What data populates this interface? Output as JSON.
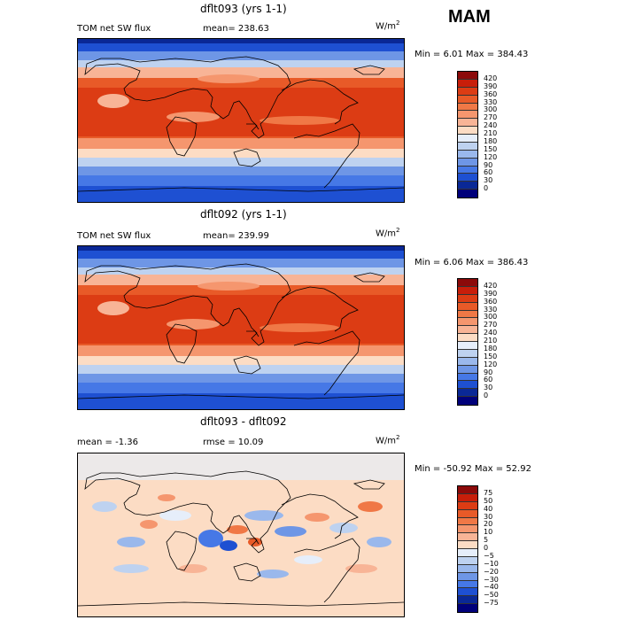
{
  "season": "MAM",
  "units_prefix": "W/m",
  "units_exp": "2",
  "panels": [
    {
      "title": "dflt093 (yrs 1-1)",
      "left_label": "TOM net SW flux",
      "stat_label": "mean= 238.63",
      "minmax": "Min =    6.01 Max = 384.43"
    },
    {
      "title": "dflt092 (yrs 1-1)",
      "left_label": "TOM net SW flux",
      "stat_label": "mean= 239.99",
      "minmax": "Min =    6.06 Max = 386.43"
    },
    {
      "title": "dflt093 - dflt092",
      "left_label": "mean =   -1.36",
      "stat_label": "rmse =   10.09",
      "minmax": "Min = -50.92 Max =   52.92"
    }
  ],
  "colorbar_abs": {
    "labels": [
      "420",
      "390",
      "360",
      "330",
      "300",
      "270",
      "240",
      "210",
      "180",
      "150",
      "120",
      "90",
      "60",
      "30",
      "0"
    ],
    "colors": [
      "#8c0a0a",
      "#c81e0a",
      "#dc3c14",
      "#e85a28",
      "#f07846",
      "#f5966e",
      "#f8b496",
      "#fcdcc4",
      "#e6eefa",
      "#bed2f0",
      "#9ab8ec",
      "#6e96e6",
      "#4678e6",
      "#1e50d2",
      "#0a2896",
      "#00007a"
    ]
  },
  "colorbar_diff": {
    "labels": [
      "75",
      "50",
      "40",
      "30",
      "20",
      "10",
      "5",
      "0",
      "−5",
      "−10",
      "−20",
      "−30",
      "−40",
      "−50",
      "−75"
    ],
    "colors": [
      "#8c0a0a",
      "#c81e0a",
      "#dc3c14",
      "#e85a28",
      "#f07846",
      "#f5966e",
      "#f8b496",
      "#fcdcc4",
      "#e6eefa",
      "#bed2f0",
      "#9ab8ec",
      "#6e96e6",
      "#4678e6",
      "#1e50d2",
      "#0a2896",
      "#00007a"
    ]
  }
}
